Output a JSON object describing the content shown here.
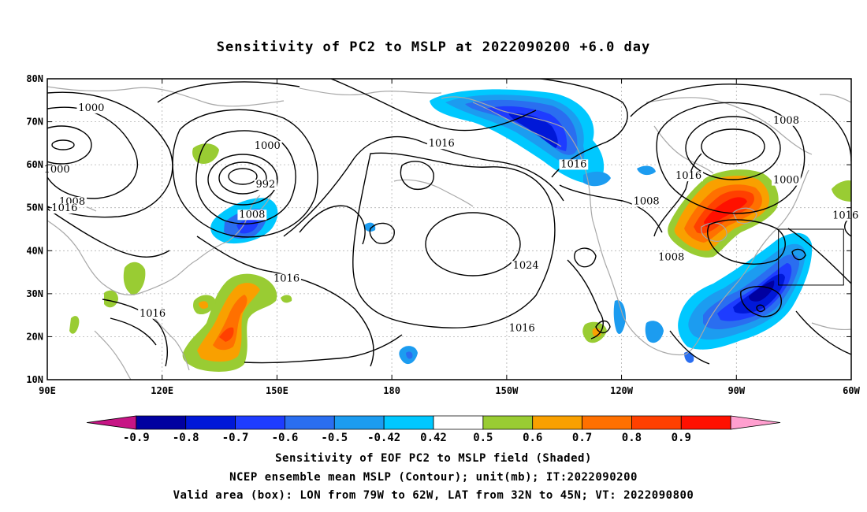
{
  "title": "Sensitivity of PC2 to MSLP at 2022090200 +6.0 day",
  "map": {
    "lon_range": [
      90,
      300
    ],
    "lat_range": [
      10,
      80
    ],
    "lat_labels": [
      "10N",
      "20N",
      "30N",
      "40N",
      "50N",
      "60N",
      "70N",
      "80N"
    ],
    "lat_values": [
      10,
      20,
      30,
      40,
      50,
      60,
      70,
      80
    ],
    "lon_labels": [
      "90E",
      "120E",
      "150E",
      "180",
      "150W",
      "120W",
      "90W",
      "60W"
    ],
    "lon_values": [
      90,
      120,
      150,
      180,
      210,
      240,
      270,
      300
    ],
    "contour_labels": [
      {
        "text": "1000",
        "lon": 101.5,
        "lat": 72.5
      },
      {
        "text": "1000",
        "lon": 92.5,
        "lat": 58.2
      },
      {
        "text": "1008",
        "lon": 96.5,
        "lat": 50.7
      },
      {
        "text": "1016",
        "lon": 94.5,
        "lat": 49.2
      },
      {
        "text": "1000",
        "lon": 147.5,
        "lat": 63.7
      },
      {
        "text": "992",
        "lon": 147.0,
        "lat": 54.7
      },
      {
        "text": "1008",
        "lon": 143.5,
        "lat": 47.7
      },
      {
        "text": "1016",
        "lon": 152.5,
        "lat": 32.8
      },
      {
        "text": "1016",
        "lon": 117.5,
        "lat": 24.7
      },
      {
        "text": "1016",
        "lon": 193.0,
        "lat": 64.2
      },
      {
        "text": "1016",
        "lon": 227.5,
        "lat": 59.4
      },
      {
        "text": "1024",
        "lon": 215.0,
        "lat": 35.8
      },
      {
        "text": "1016",
        "lon": 214.0,
        "lat": 21.3
      },
      {
        "text": "1008",
        "lon": 246.5,
        "lat": 50.8
      },
      {
        "text": "1008",
        "lon": 253.0,
        "lat": 37.8
      },
      {
        "text": "1016",
        "lon": 257.5,
        "lat": 56.7
      },
      {
        "text": "1008",
        "lon": 283.0,
        "lat": 69.6
      },
      {
        "text": "1000",
        "lon": 283.0,
        "lat": 55.7
      },
      {
        "text": "1016",
        "lon": 298.5,
        "lat": 47.5
      }
    ],
    "valid_box": {
      "lon_min": 281,
      "lon_max": 298,
      "lat_min": 32,
      "lat_max": 45
    }
  },
  "colorbar": {
    "labels": [
      "-0.9",
      "-0.8",
      "-0.7",
      "-0.6",
      "-0.5",
      "-0.42",
      "0.42",
      "0.5",
      "0.6",
      "0.7",
      "0.8",
      "0.9"
    ],
    "colors": [
      "#c71585",
      "#0000a0",
      "#0018d8",
      "#1e3cff",
      "#2a6ef0",
      "#1c9cf0",
      "#00c8ff",
      "#ffffff",
      "#99cc33",
      "#f9a000",
      "#ff7000",
      "#ff4000",
      "#ff1000",
      "#ff9fcf"
    ]
  },
  "captions": [
    "Sensitivity of EOF PC2 to MSLP field (Shaded)",
    "NCEP ensemble mean MSLP (Contour); unit(mb); IT:2022090200",
    "Valid area (box): LON from 79W to 62W, LAT from 32N to 45N; VT: 2022090800"
  ]
}
